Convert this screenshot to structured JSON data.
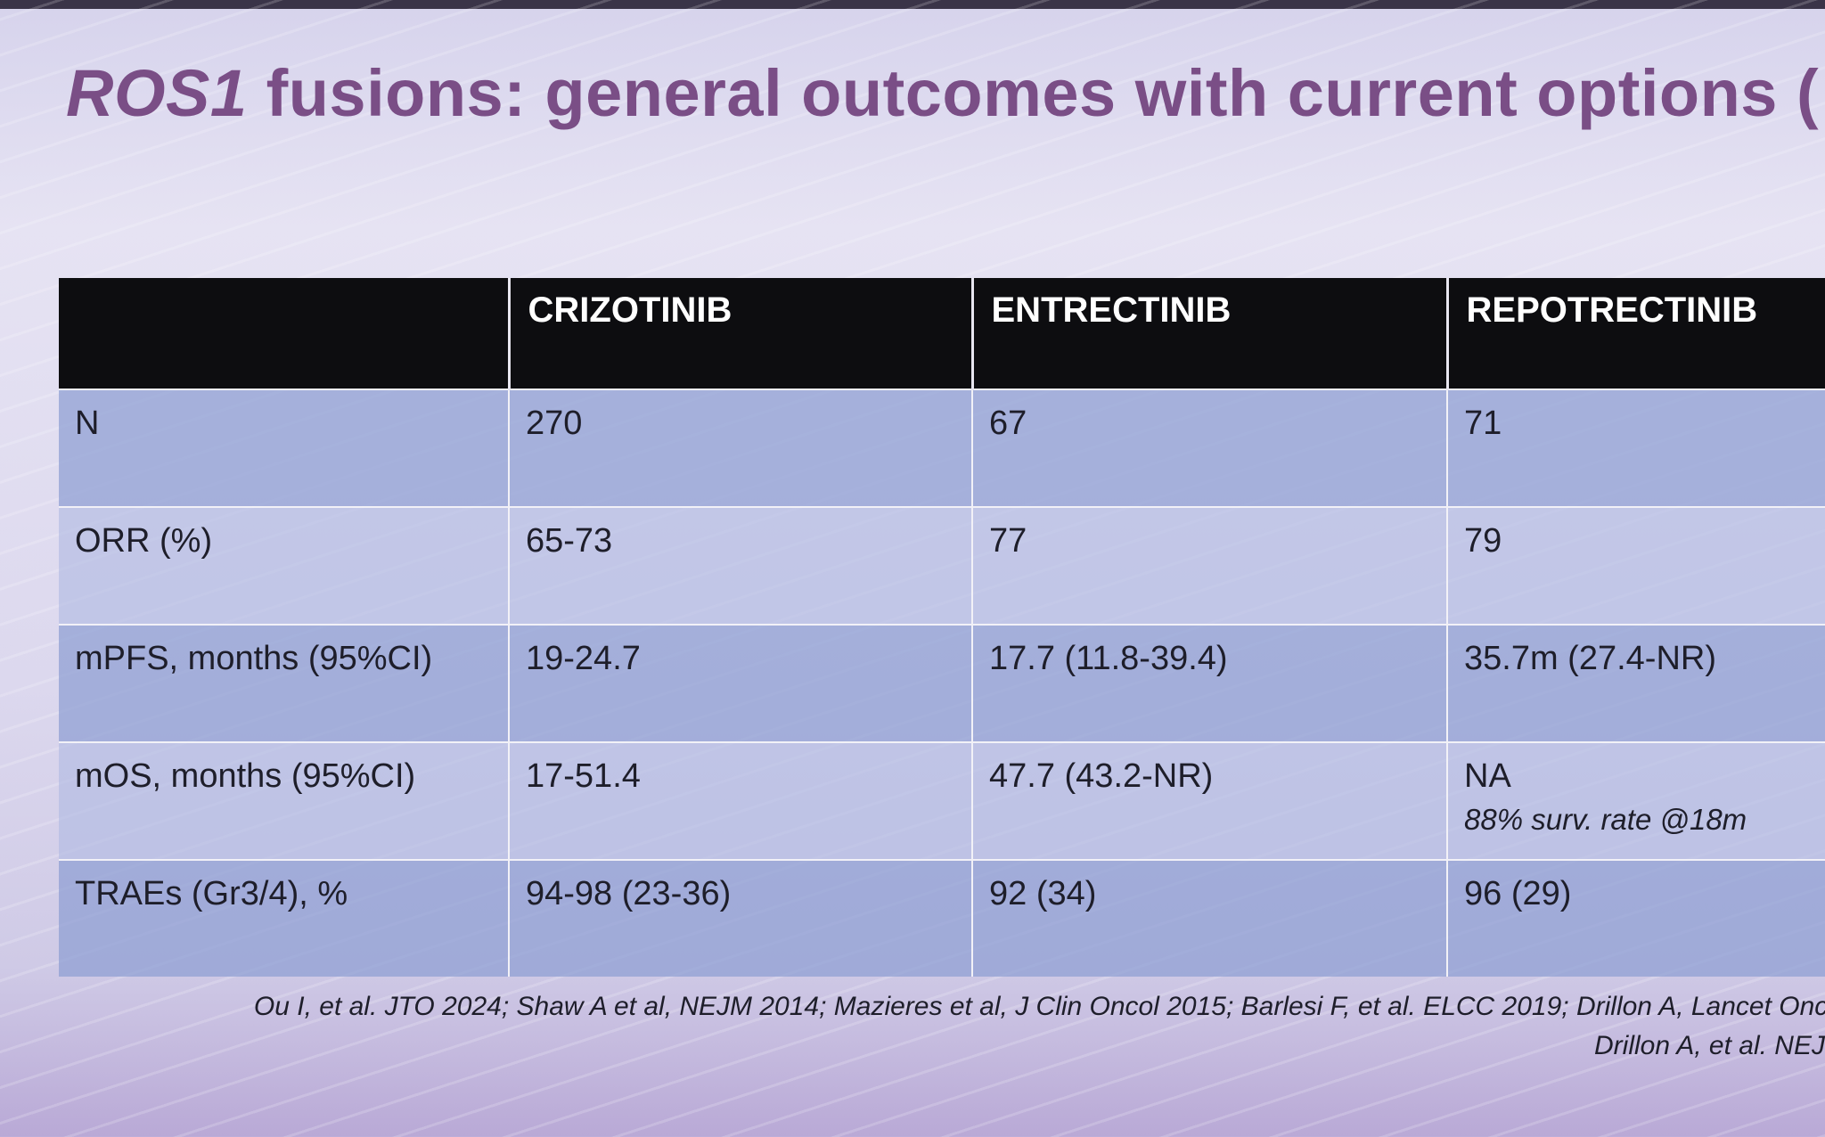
{
  "slide": {
    "title_gene": "ROS1",
    "title_rest": " fusions: general outcomes with current options ("
  },
  "table": {
    "headers": [
      "",
      "CRIZOTINIB",
      "ENTRECTINIB",
      "REPOTRECTINIB"
    ],
    "rows": [
      {
        "label": "N",
        "crizotinib": "270",
        "entrectinib": "67",
        "repotrectinib": "71"
      },
      {
        "label": "ORR (%)",
        "crizotinib": "65-73",
        "entrectinib": "77",
        "repotrectinib": "79"
      },
      {
        "label": "mPFS, months (95%CI)",
        "crizotinib": "19-24.7",
        "entrectinib": "17.7 (11.8-39.4)",
        "repotrectinib": "35.7m (27.4-NR)"
      },
      {
        "label": "mOS, months (95%CI)",
        "crizotinib": "17-51.4",
        "entrectinib": "47.7 (43.2-NR)",
        "repotrectinib": "NA",
        "repotrectinib_note": "88% surv. rate @18m"
      },
      {
        "label": "TRAEs (Gr3/4), %",
        "crizotinib": "94-98 (23-36)",
        "entrectinib": "92 (34)",
        "repotrectinib": "96 (29)"
      }
    ]
  },
  "references": {
    "line1": "Ou I, et al. JTO 2024; Shaw A et al, NEJM 2014; Mazieres et al, J Clin Oncol 2015; Barlesi F, et al. ELCC 2019; Drillon A, Lancet Onco",
    "line2": "Drillon A, et al. NEJ"
  }
}
